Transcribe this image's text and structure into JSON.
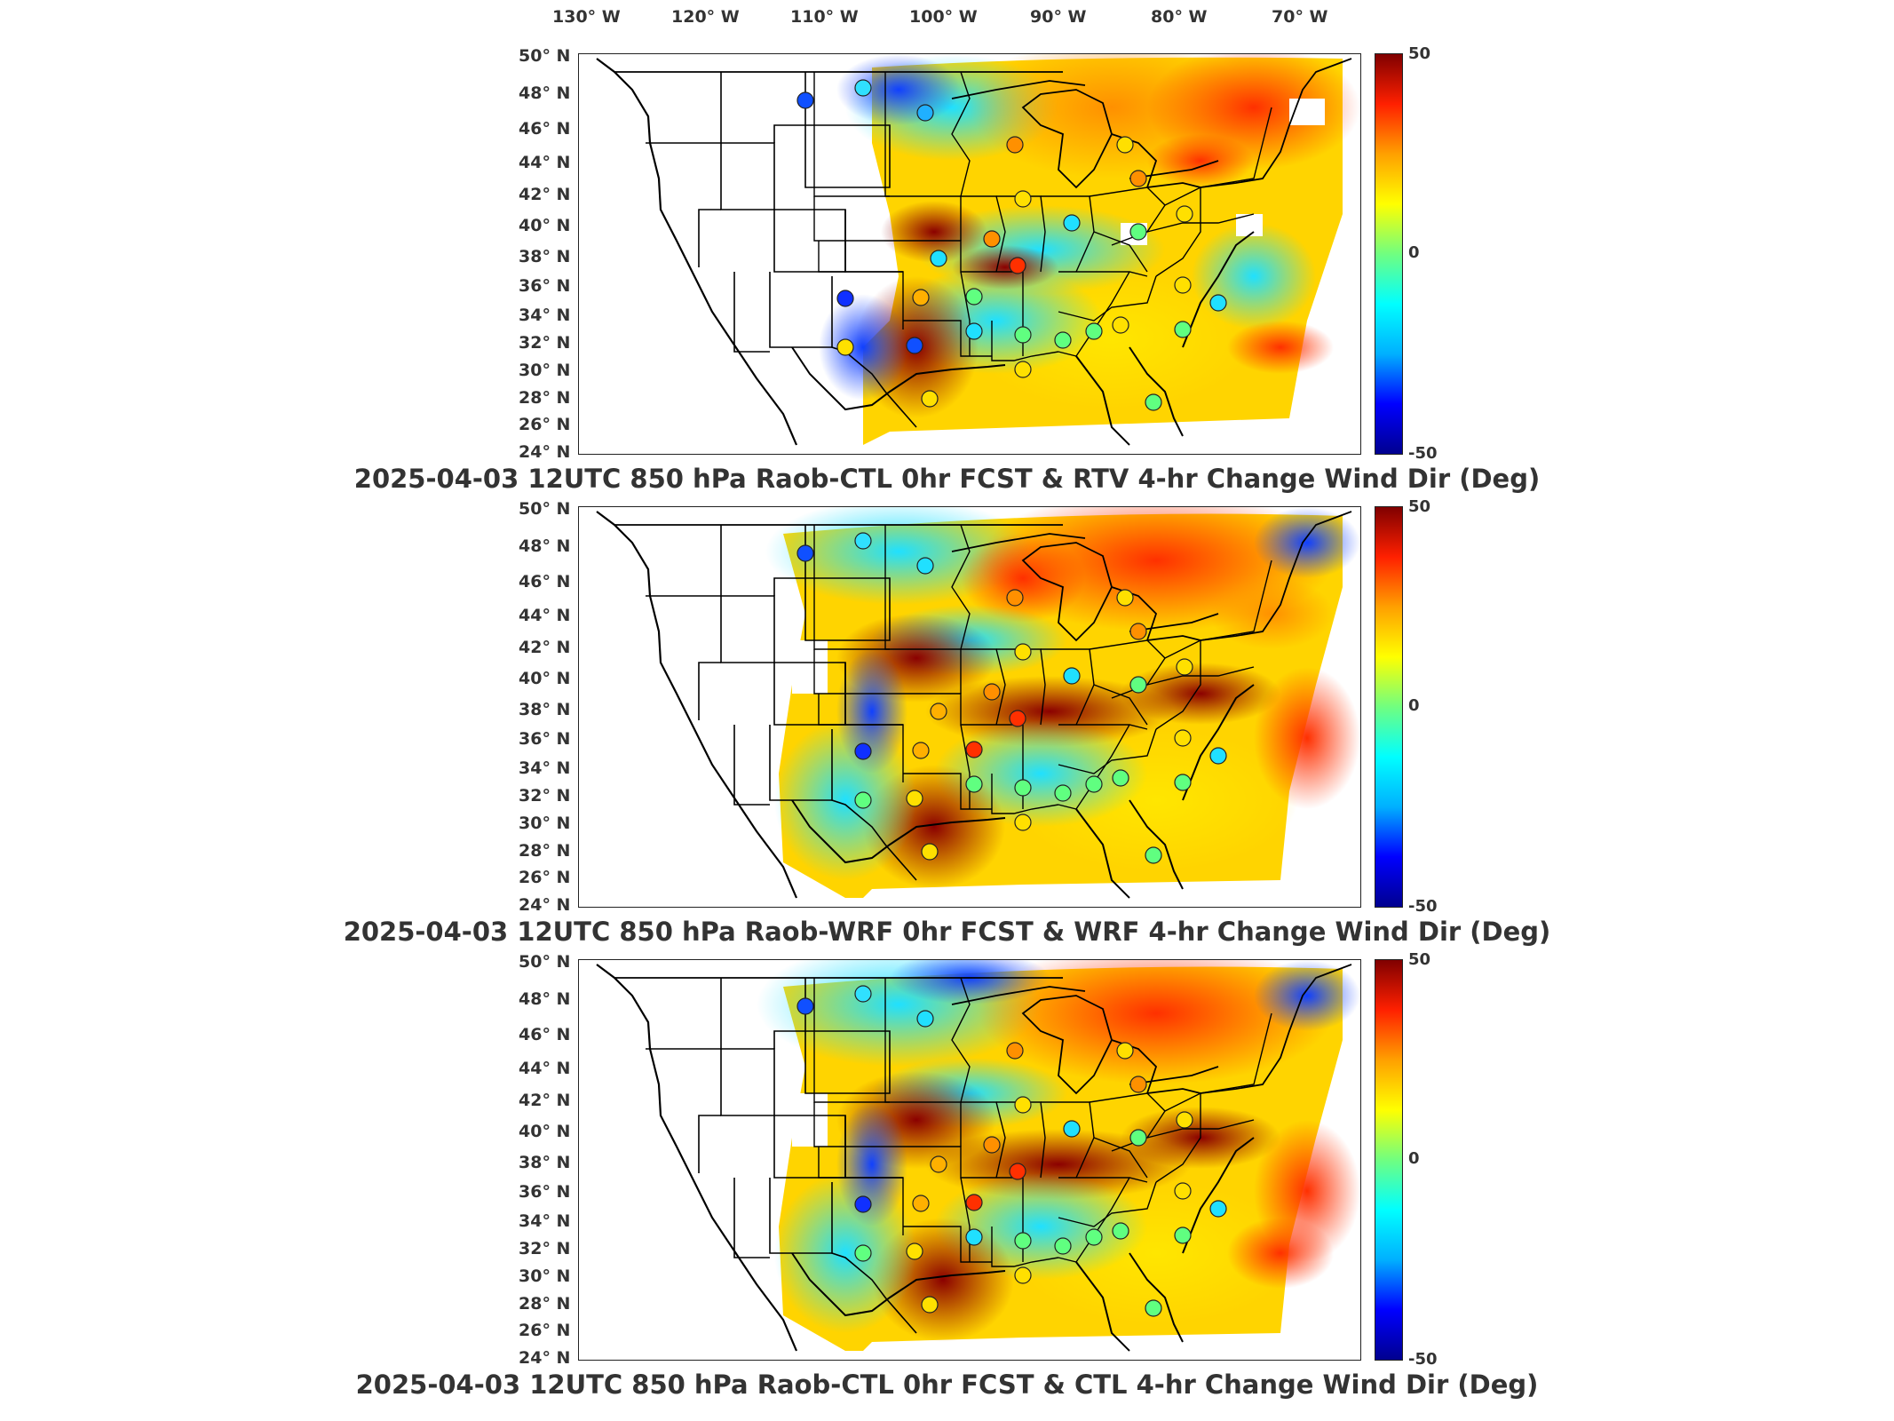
{
  "longitude_labels": [
    "130° W",
    "120° W",
    "110° W",
    "100° W",
    "90° W",
    "80° W",
    "70° W"
  ],
  "latitude_labels": [
    "50° N",
    "48° N",
    "46° N",
    "44° N",
    "42° N",
    "40° N",
    "38° N",
    "36° N",
    "34° N",
    "32° N",
    "30° N",
    "28° N",
    "26° N",
    "24° N"
  ],
  "colorbar": {
    "max_label": "50",
    "mid_label": "0",
    "min_label": "-50",
    "colors": [
      "#00008f",
      "#0000ff",
      "#00b0ff",
      "#00ffff",
      "#70ff80",
      "#ffff00",
      "#ffa000",
      "#ff2000",
      "#800000"
    ]
  },
  "panels": [
    {
      "title": "2025-04-03 12UTC 850 hPa Raob-CTL 0hr FCST & RTV 4-hr Change Wind Dir (Deg)"
    },
    {
      "title": "2025-04-03 12UTC 850 hPa Raob-WRF 0hr FCST & WRF 4-hr Change Wind Dir (Deg)"
    },
    {
      "title": "2025-04-03 12UTC 850 hPa Raob-CTL 0hr FCST & CTL 4-hr Change Wind Dir (Deg)"
    }
  ],
  "colors": {
    "map_border": "#222222",
    "deep_red": "#8b0000",
    "orange": "#ff8c00",
    "yellow": "#ffe600",
    "cyan": "#20e0ff",
    "blue": "#1040ff"
  }
}
